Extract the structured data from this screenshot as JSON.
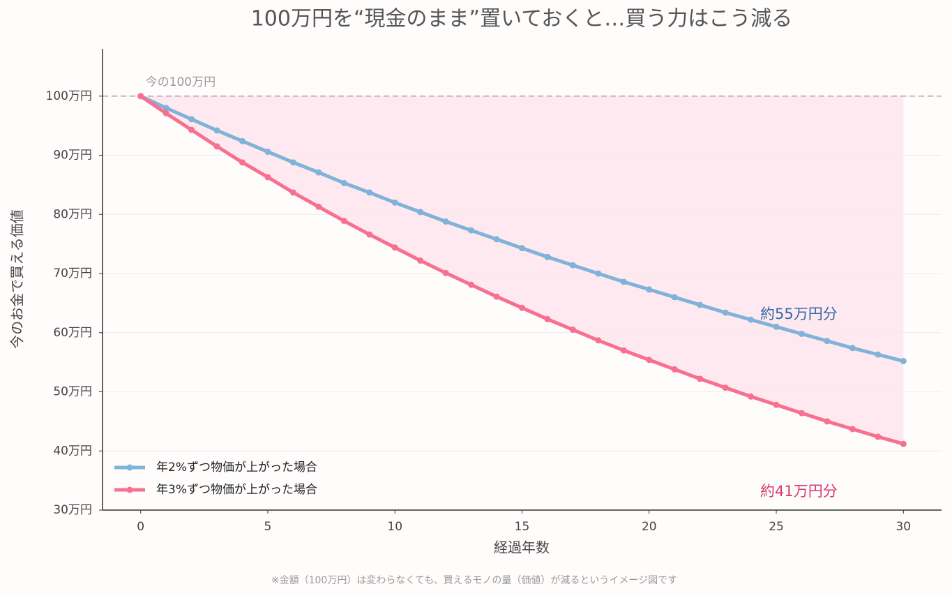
{
  "chart_data": {
    "type": "line",
    "title": "100万円を“現金のまま”置いておくと…買う力はこう減る",
    "xlabel": "経過年数",
    "ylabel": "今のお金で買える価値",
    "x": [
      0,
      1,
      2,
      3,
      4,
      5,
      6,
      7,
      8,
      9,
      10,
      11,
      12,
      13,
      14,
      15,
      16,
      17,
      18,
      19,
      20,
      21,
      22,
      23,
      24,
      25,
      26,
      27,
      28,
      29,
      30
    ],
    "series": [
      {
        "name": "年2%ずつ物価が上がった場合",
        "color": "#7fb3d8",
        "values": [
          100,
          98.0,
          96.1,
          94.2,
          92.4,
          90.6,
          88.8,
          87.1,
          85.3,
          83.7,
          82.0,
          80.4,
          78.8,
          77.3,
          75.8,
          74.3,
          72.8,
          71.4,
          70.0,
          68.6,
          67.3,
          66.0,
          64.7,
          63.4,
          62.2,
          61.0,
          59.8,
          58.6,
          57.4,
          56.3,
          55.2
        ]
      },
      {
        "name": "年3%ずつ物価が上がった場合",
        "color": "#f7708f",
        "values": [
          100,
          97.1,
          94.3,
          91.5,
          88.8,
          86.3,
          83.7,
          81.3,
          78.9,
          76.6,
          74.4,
          72.2,
          70.1,
          68.1,
          66.1,
          64.2,
          62.3,
          60.5,
          58.7,
          57.0,
          55.4,
          53.8,
          52.2,
          50.7,
          49.2,
          47.8,
          46.4,
          45.0,
          43.7,
          42.4,
          41.2
        ]
      }
    ],
    "xlim": [
      -1.5,
      31.5
    ],
    "xticks": [
      0,
      5,
      10,
      15,
      20,
      25,
      30
    ],
    "ylim": [
      30,
      108
    ],
    "yticks": [
      {
        "value": 30,
        "label": "30万円"
      },
      {
        "value": 40,
        "label": "40万円"
      },
      {
        "value": 50,
        "label": "50万円"
      },
      {
        "value": 60,
        "label": "60万円"
      },
      {
        "value": 70,
        "label": "70万円"
      },
      {
        "value": 80,
        "label": "80万円"
      },
      {
        "value": 90,
        "label": "90万円"
      },
      {
        "value": 100,
        "label": "100万円"
      }
    ],
    "grid": true,
    "legend": "lower left",
    "reference_line": {
      "value": 100,
      "label": "今の100万円"
    },
    "annotations": [
      {
        "text": "約55万円分",
        "color": "#2e6aa6"
      },
      {
        "text": "約41万円分",
        "color": "#d63a6e"
      }
    ],
    "note": "※金額（100万円）は変わらなくても、買えるモノの量（価値）が減るというイメージ図です"
  }
}
